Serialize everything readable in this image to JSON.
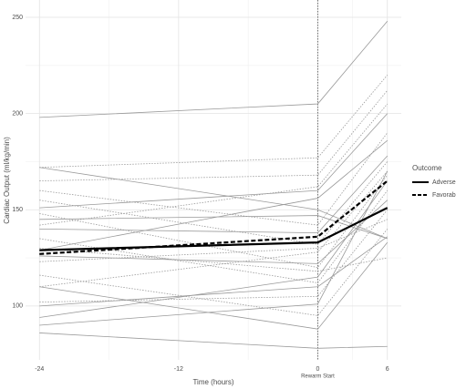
{
  "chart_data": {
    "type": "line",
    "xlabel": "Time (hours)",
    "ylabel": "Cardiac Output (ml/kg/min)",
    "x": [
      -24,
      0,
      6
    ],
    "xlim": [
      -25.2,
      7.2
    ],
    "xticks": [
      -24,
      -12,
      0,
      6
    ],
    "minor_xticks": [
      -18,
      -6,
      3
    ],
    "ylim": [
      72,
      259
    ],
    "yticks": [
      100,
      150,
      200,
      250
    ],
    "minor_yticks": [
      125,
      175,
      225
    ],
    "grid": true,
    "vline": {
      "x": 0,
      "label": "Rewarm Start"
    },
    "legend": {
      "title": "Outcome",
      "position": "right"
    },
    "series": [
      {
        "name": "Adverse",
        "color": "#000000",
        "linestyle": "solid",
        "values": [
          129,
          133,
          151
        ]
      },
      {
        "name": "Favorable",
        "color": "#000000",
        "linestyle": "dashed",
        "values": [
          127,
          136,
          165
        ]
      }
    ],
    "individual_color": "#9a9a9a",
    "individuals": [
      {
        "group": 0,
        "values": [
          198,
          205,
          248
        ]
      },
      {
        "group": 0,
        "values": [
          172,
          150,
          135
        ]
      },
      {
        "group": 0,
        "values": [
          151,
          160,
          200
        ]
      },
      {
        "group": 0,
        "values": [
          145,
          147,
          135
        ]
      },
      {
        "group": 0,
        "values": [
          129,
          156,
          186
        ]
      },
      {
        "group": 0,
        "values": [
          94,
          115,
          165
        ]
      },
      {
        "group": 0,
        "values": [
          90,
          101,
          170
        ]
      },
      {
        "group": 0,
        "values": [
          86,
          78,
          79
        ]
      },
      {
        "group": 0,
        "values": [
          140,
          138,
          178
        ]
      },
      {
        "group": 0,
        "values": [
          110,
          88,
          133
        ]
      },
      {
        "group": 0,
        "values": [
          126,
          122,
          155
        ]
      },
      {
        "group": 0,
        "values": [
          100,
          110,
          136
        ]
      },
      {
        "group": 1,
        "values": [
          172,
          177,
          220
        ]
      },
      {
        "group": 1,
        "values": [
          165,
          168,
          212
        ]
      },
      {
        "group": 1,
        "values": [
          160,
          142,
          190
        ]
      },
      {
        "group": 1,
        "values": [
          155,
          132,
          175
        ]
      },
      {
        "group": 1,
        "values": [
          148,
          120,
          168
        ]
      },
      {
        "group": 1,
        "values": [
          135,
          112,
          160
        ]
      },
      {
        "group": 1,
        "values": [
          123,
          130,
          145
        ]
      },
      {
        "group": 1,
        "values": [
          116,
          95,
          140
        ]
      },
      {
        "group": 1,
        "values": [
          102,
          105,
          150
        ]
      },
      {
        "group": 1,
        "values": [
          142,
          162,
          205
        ]
      },
      {
        "group": 1,
        "values": [
          110,
          128,
          170
        ]
      },
      {
        "group": 1,
        "values": [
          130,
          118,
          125
        ]
      }
    ]
  }
}
